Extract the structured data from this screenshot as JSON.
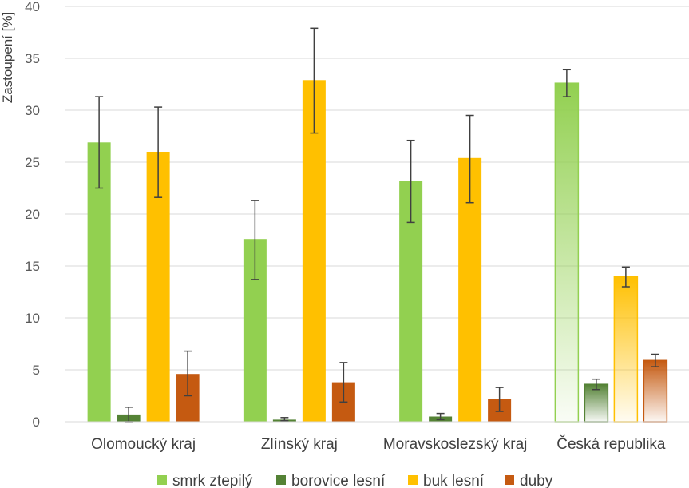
{
  "chart_data": {
    "type": "bar",
    "ylabel": "Zastoupení [%]",
    "ylim": [
      0,
      40
    ],
    "yticks": [
      0,
      5,
      10,
      15,
      20,
      25,
      30,
      35,
      40
    ],
    "grid": true,
    "legend_position": "bottom",
    "categories": [
      "Olomoucký kraj",
      "Zlínský kraj",
      "Moravskoslezský kraj",
      "Česká republika"
    ],
    "series": [
      {
        "name": "smrk ztepilý",
        "color": "#92d050",
        "values": [
          26.9,
          17.6,
          23.2,
          32.6
        ],
        "err_low": [
          22.5,
          13.7,
          19.2,
          31.3
        ],
        "err_high": [
          31.3,
          21.3,
          27.1,
          33.9
        ]
      },
      {
        "name": "borovice lesní",
        "color": "#548235",
        "values": [
          0.7,
          0.2,
          0.5,
          3.6
        ],
        "err_low": [
          0.0,
          0.1,
          0.2,
          3.1
        ],
        "err_high": [
          1.4,
          0.4,
          0.8,
          4.1
        ]
      },
      {
        "name": "buk lesní",
        "color": "#ffc000",
        "values": [
          26.0,
          32.9,
          25.4,
          14.0
        ],
        "err_low": [
          21.6,
          27.8,
          21.1,
          13.0
        ],
        "err_high": [
          30.3,
          37.9,
          29.5,
          14.9
        ]
      },
      {
        "name": "duby",
        "color": "#c55a11",
        "values": [
          4.6,
          3.8,
          2.2,
          5.9
        ],
        "err_low": [
          2.5,
          1.9,
          1.0,
          5.3
        ],
        "err_high": [
          6.8,
          5.7,
          3.3,
          6.5
        ]
      }
    ],
    "gradient_categories": [
      "Česká republika"
    ]
  }
}
